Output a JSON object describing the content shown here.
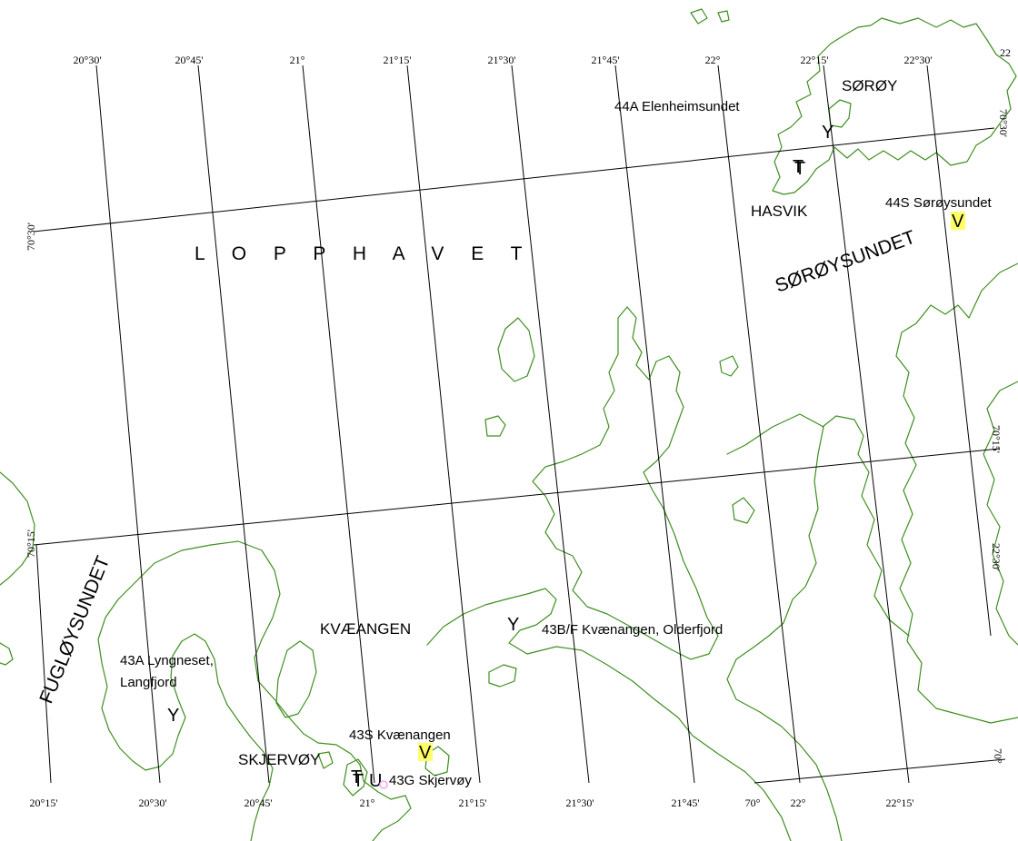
{
  "map": {
    "sea_names": {
      "lopphavet": "L O P P H A V E T",
      "soroysundet": "SØRØYSUNDET",
      "fugloysundet": "FUGLØYSUNDET"
    },
    "place_names": {
      "soroy": "SØRØY",
      "hasvik": "HASVIK",
      "kvaeangen": "KVÆANGEN",
      "skjervoy": "SKJERVØY"
    },
    "stations": {
      "elenheimsundet": "44A Elenheimsundet",
      "soroysundet": "44S Sørøysundet",
      "kvaenangen_olderfjord": "43B/F Kvænangen, Olderfjord",
      "lyngneset_line1": "43A Lyngneset,",
      "lyngneset_line2": "Langfjord",
      "kvaenangen_s": "43S Kvænangen",
      "skjervoy_g": "43G Skjervøy"
    },
    "symbols": {
      "y": "Y",
      "v": "V",
      "t": "T",
      "u": "U"
    },
    "symbol_colors": {
      "v_highlight": "#ffff66",
      "t_green": "#22cc22",
      "u_pink": "#f0a8e8",
      "coastline": "#3f8f1f"
    },
    "grid_top_lon": [
      "20°30'",
      "20°45'",
      "21°",
      "21°15'",
      "21°30'",
      "21°45'",
      "22°",
      "22°15'",
      "22°30'",
      "22"
    ],
    "grid_bottom_lon": [
      "20°15'",
      "20°30'",
      "20°45'",
      "21°",
      "21°15'",
      "21°30'",
      "21°45'",
      "70°",
      "22°",
      "22°15'"
    ],
    "grid_lat": {
      "left_7030": "70°30'",
      "left_7015": "70°15'",
      "right_7030": "70°30'",
      "right_7015": "70°15'",
      "right_2230": "22°30'",
      "right_70": "70°"
    }
  }
}
